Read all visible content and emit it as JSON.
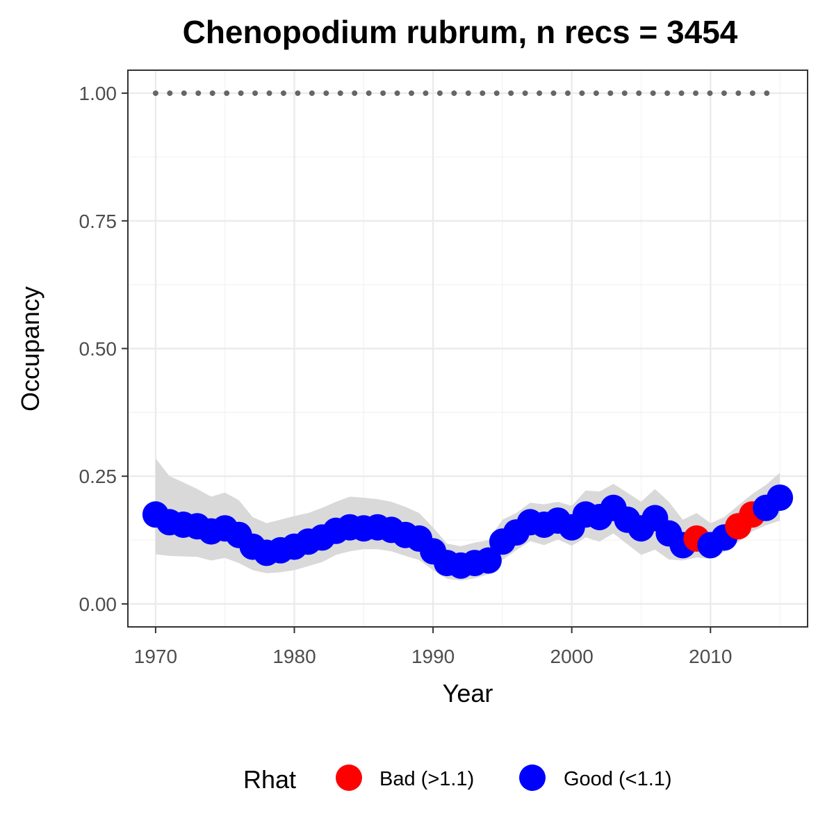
{
  "chart_data": {
    "type": "line",
    "title": "Chenopodium rubrum, n recs = 3454",
    "xlabel": "Year",
    "ylabel": "Occupancy",
    "xlim": [
      1968,
      2017
    ],
    "ylim": [
      -0.045,
      1.045
    ],
    "x_ticks": [
      1970,
      1980,
      1990,
      2000,
      2010
    ],
    "x_tick_labels": [
      "1970",
      "1980",
      "1990",
      "2000",
      "2010"
    ],
    "y_ticks": [
      0,
      0.25,
      0.5,
      0.75,
      1.0
    ],
    "y_tick_labels": [
      "0.00",
      "0.25",
      "0.50",
      "0.75",
      "1.00"
    ],
    "grid": true,
    "legend_position": "bottom",
    "legend": {
      "title": "Rhat",
      "items": [
        {
          "label": "Bad (>1.1)",
          "color": "#ff0000"
        },
        {
          "label": "Good (<1.1)",
          "color": "#0000ff"
        }
      ]
    },
    "colors": {
      "bad": "#ff0000",
      "good": "#0000ff",
      "ribbon": "#d9d9d9",
      "reference": "#666666"
    },
    "reference_line": {
      "y": 1.0,
      "style": "dotted",
      "x_range": [
        1970,
        2015
      ]
    },
    "series": [
      {
        "x": [
          1970,
          1971,
          1972,
          1973,
          1974,
          1975,
          1976,
          1977,
          1978,
          1979,
          1980,
          1981,
          1982,
          1983,
          1984,
          1985,
          1986,
          1987,
          1988,
          1989,
          1990,
          1991,
          1992,
          1993,
          1994,
          1995,
          1996,
          1997,
          1998,
          1999,
          2000,
          2001,
          2002,
          2003,
          2004,
          2005,
          2006,
          2007,
          2008,
          2009,
          2010,
          2011,
          2012,
          2013,
          2014,
          2015
        ],
        "y": [
          0.175,
          0.16,
          0.155,
          0.152,
          0.142,
          0.148,
          0.135,
          0.112,
          0.1,
          0.105,
          0.112,
          0.122,
          0.13,
          0.143,
          0.15,
          0.148,
          0.15,
          0.145,
          0.135,
          0.128,
          0.103,
          0.08,
          0.075,
          0.08,
          0.085,
          0.122,
          0.14,
          0.16,
          0.155,
          0.163,
          0.15,
          0.175,
          0.17,
          0.188,
          0.165,
          0.148,
          0.168,
          0.138,
          0.115,
          0.128,
          0.115,
          0.13,
          0.152,
          0.175,
          0.188,
          0.208
        ],
        "lower": [
          0.097,
          0.094,
          0.093,
          0.092,
          0.085,
          0.09,
          0.08,
          0.066,
          0.06,
          0.062,
          0.066,
          0.074,
          0.082,
          0.096,
          0.103,
          0.107,
          0.107,
          0.103,
          0.094,
          0.086,
          0.066,
          0.049,
          0.046,
          0.05,
          0.058,
          0.086,
          0.105,
          0.123,
          0.115,
          0.126,
          0.114,
          0.13,
          0.122,
          0.138,
          0.117,
          0.096,
          0.106,
          0.087,
          0.085,
          0.091,
          0.088,
          0.102,
          0.121,
          0.142,
          0.154,
          0.163
        ],
        "upper": [
          0.285,
          0.25,
          0.238,
          0.225,
          0.21,
          0.218,
          0.203,
          0.17,
          0.158,
          0.165,
          0.172,
          0.178,
          0.188,
          0.2,
          0.21,
          0.208,
          0.205,
          0.2,
          0.19,
          0.178,
          0.15,
          0.118,
          0.113,
          0.12,
          0.125,
          0.165,
          0.178,
          0.198,
          0.195,
          0.2,
          0.192,
          0.222,
          0.22,
          0.235,
          0.218,
          0.2,
          0.225,
          0.2,
          0.165,
          0.178,
          0.158,
          0.17,
          0.193,
          0.215,
          0.233,
          0.257
        ],
        "rhat": [
          "good",
          "good",
          "good",
          "good",
          "good",
          "good",
          "good",
          "good",
          "good",
          "good",
          "good",
          "good",
          "good",
          "good",
          "good",
          "good",
          "good",
          "good",
          "good",
          "good",
          "good",
          "good",
          "good",
          "good",
          "good",
          "good",
          "good",
          "good",
          "good",
          "good",
          "good",
          "good",
          "good",
          "good",
          "good",
          "good",
          "good",
          "good",
          "good",
          "bad",
          "good",
          "good",
          "bad",
          "bad",
          "good",
          "good"
        ]
      }
    ]
  }
}
